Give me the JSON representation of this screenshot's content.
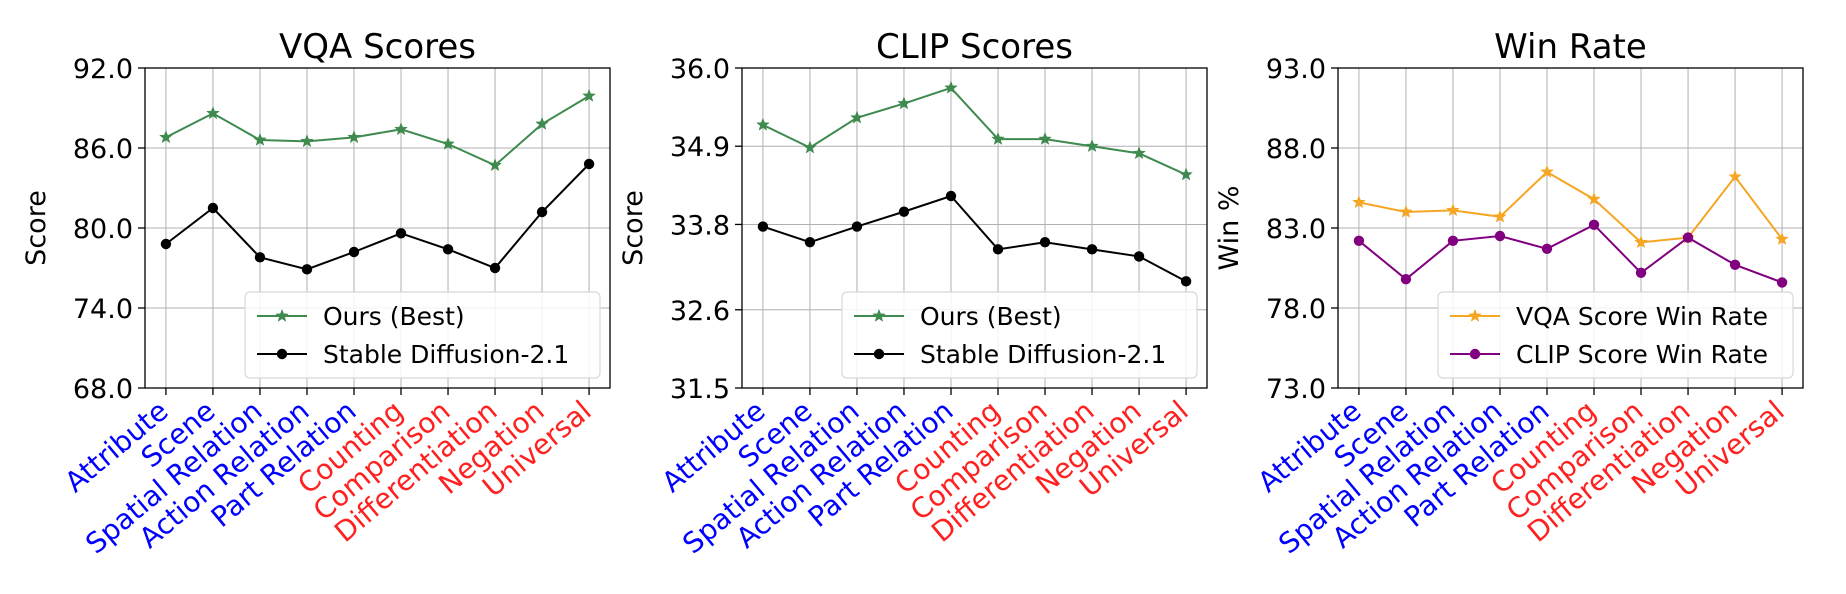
{
  "chart_data": [
    {
      "type": "line",
      "title": "VQA Scores",
      "xlabel": "",
      "ylabel": "Score",
      "categories": [
        "Attribute",
        "Scene",
        "Spatial Relation",
        "Action Relation",
        "Part Relation",
        "Counting",
        "Comparison",
        "Differentiation",
        "Negation",
        "Universal"
      ],
      "ylim": [
        68.0,
        92.0
      ],
      "yticks": [
        "68.0",
        "74.0",
        "80.0",
        "86.0",
        "92.0"
      ],
      "grid": true,
      "legend_position": "lower-right",
      "series": [
        {
          "name": "Ours (Best)",
          "color": "#3f8a4f",
          "marker": "star",
          "values": [
            86.8,
            88.6,
            86.6,
            86.5,
            86.8,
            87.4,
            86.3,
            84.7,
            87.8,
            89.9
          ]
        },
        {
          "name": "Stable Diffusion-2.1",
          "color": "#000000",
          "marker": "circle",
          "values": [
            78.8,
            81.5,
            77.8,
            76.9,
            78.2,
            79.6,
            78.4,
            77.0,
            81.2,
            84.8
          ]
        }
      ]
    },
    {
      "type": "line",
      "title": "CLIP Scores",
      "xlabel": "",
      "ylabel": "Score",
      "categories": [
        "Attribute",
        "Scene",
        "Spatial Relation",
        "Action Relation",
        "Part Relation",
        "Counting",
        "Comparison",
        "Differentiation",
        "Negation",
        "Universal"
      ],
      "ylim": [
        31.5,
        36.0
      ],
      "yticks": [
        "31.5",
        "32.6",
        "33.8",
        "34.9",
        "36.0"
      ],
      "grid": true,
      "legend_position": "lower-right",
      "series": [
        {
          "name": "Ours (Best)",
          "color": "#3f8a4f",
          "marker": "star",
          "values": [
            35.2,
            34.88,
            35.3,
            35.5,
            35.72,
            35.0,
            35.0,
            34.9,
            34.8,
            34.5
          ]
        },
        {
          "name": "Stable Diffusion-2.1",
          "color": "#000000",
          "marker": "circle",
          "values": [
            33.77,
            33.55,
            33.77,
            33.98,
            34.2,
            33.45,
            33.55,
            33.45,
            33.35,
            33.0
          ]
        }
      ]
    },
    {
      "type": "line",
      "title": "Win Rate",
      "xlabel": "",
      "ylabel": "Win %",
      "categories": [
        "Attribute",
        "Scene",
        "Spatial Relation",
        "Action Relation",
        "Part Relation",
        "Counting",
        "Comparison",
        "Differentiation",
        "Negation",
        "Universal"
      ],
      "ylim": [
        73.0,
        93.0
      ],
      "yticks": [
        "73.0",
        "78.0",
        "83.0",
        "88.0",
        "93.0"
      ],
      "grid": true,
      "legend_position": "lower-right",
      "series": [
        {
          "name": "VQA Score Win Rate",
          "color": "#f5a623",
          "marker": "star",
          "values": [
            84.6,
            84.0,
            84.1,
            83.7,
            86.5,
            84.8,
            82.1,
            82.4,
            86.2,
            82.3
          ]
        },
        {
          "name": "CLIP Score Win Rate",
          "color": "#800080",
          "marker": "circle",
          "values": [
            82.2,
            79.8,
            82.2,
            82.5,
            81.7,
            83.2,
            80.2,
            82.4,
            80.7,
            79.6
          ]
        }
      ]
    }
  ],
  "category_colors": {
    "Attribute": "#0000ff",
    "Scene": "#0000ff",
    "Spatial Relation": "#0000ff",
    "Action Relation": "#0000ff",
    "Part Relation": "#0000ff",
    "Counting": "#ff2020",
    "Comparison": "#ff2020",
    "Differentiation": "#ff2020",
    "Negation": "#ff2020",
    "Universal": "#ff2020"
  }
}
